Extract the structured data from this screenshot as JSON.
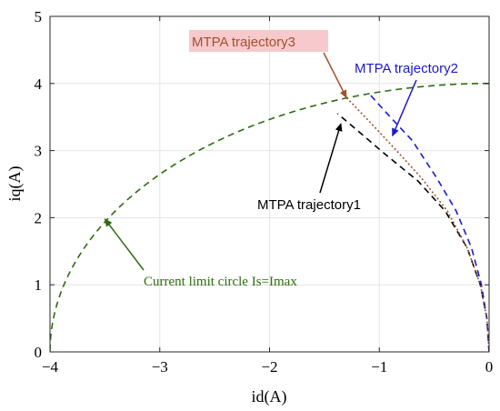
{
  "chart_data": {
    "type": "line",
    "title": "",
    "xlabel": "id(A)",
    "ylabel": "iq(A)",
    "xlim": [
      -4,
      0
    ],
    "ylim": [
      0,
      5
    ],
    "x_ticks": [
      -4,
      -3,
      -2,
      -1,
      0
    ],
    "x_tick_labels": [
      "−4",
      "−3",
      "−2",
      "−1",
      "0"
    ],
    "y_ticks": [
      0,
      1,
      2,
      3,
      4,
      5
    ],
    "y_tick_labels": [
      "0",
      "1",
      "2",
      "3",
      "4",
      "5"
    ],
    "grid": true,
    "series": [
      {
        "label": "Current limit circle Is=Imax",
        "color": "#2e6b0e",
        "style": "dashed",
        "circle": {
          "cx": 0,
          "cy": 0,
          "r": 4,
          "theta_deg": [
            90,
            180
          ]
        }
      },
      {
        "label": "MTPA trajectory1",
        "color": "#000000",
        "style": "dashed",
        "x": [
          0,
          -0.02,
          -0.08,
          -0.2,
          -0.4,
          -0.65,
          -0.95,
          -1.2,
          -1.38
        ],
        "y": [
          0,
          0.5,
          1.0,
          1.55,
          2.1,
          2.55,
          2.95,
          3.3,
          3.55
        ]
      },
      {
        "label": "MTPA trajectory2",
        "color": "#1a1acc",
        "style": "dashed",
        "x": [
          0,
          -0.02,
          -0.07,
          -0.16,
          -0.3,
          -0.48,
          -0.7,
          -0.9,
          -1.1
        ],
        "y": [
          0,
          0.5,
          1.0,
          1.55,
          2.1,
          2.6,
          3.15,
          3.5,
          3.86
        ]
      },
      {
        "label": "MTPA trajectory3",
        "color": "#a0522d",
        "style": "dotted",
        "x": [
          0,
          -0.02,
          -0.08,
          -0.2,
          -0.38,
          -0.62,
          -0.9,
          -1.1,
          -1.3
        ],
        "y": [
          0,
          0.5,
          1.0,
          1.55,
          2.1,
          2.6,
          3.1,
          3.45,
          3.79
        ]
      }
    ],
    "annotations": [
      {
        "text": "MTPA trajectory3",
        "color": "#a0522d",
        "highlight": "#f7c9cc",
        "point": [
          -1.3,
          3.79
        ]
      },
      {
        "text": "MTPA trajectory2",
        "color": "#1a1acc",
        "point": [
          -0.88,
          3.22
        ]
      },
      {
        "text": "MTPA trajectory1",
        "color": "#000000",
        "point": [
          -1.35,
          3.4
        ]
      },
      {
        "text": "Current limit circle Is=Imax",
        "color": "#2e6b0e",
        "point": [
          -3.5,
          1.98
        ]
      }
    ]
  }
}
